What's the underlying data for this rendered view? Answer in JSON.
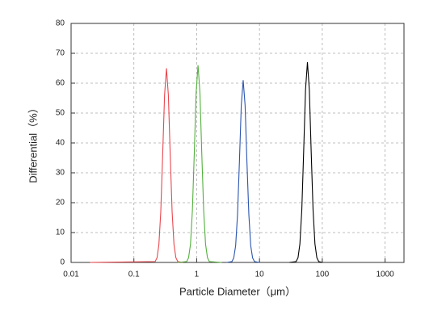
{
  "chart_data": {
    "type": "line",
    "x_label": "Particle Diameter（μm）",
    "y_label": "Differential（%）",
    "log_x": true,
    "grid": true,
    "xlim": [
      0.01,
      2000
    ],
    "xticks": [
      0.01,
      0.1,
      1,
      10,
      100,
      1000
    ],
    "ylim": [
      0,
      80
    ],
    "yticks": [
      0,
      10,
      20,
      30,
      40,
      50,
      60,
      70,
      80
    ],
    "series": [
      {
        "color": "#e8474e",
        "x": [
          0.02,
          0.218,
          0.234,
          0.25,
          0.268,
          0.287,
          0.308,
          0.33,
          0.354,
          0.379,
          0.406,
          0.435,
          0.466,
          0.5,
          0.6
        ],
        "values": [
          0,
          0.3,
          1.6,
          6,
          17,
          35.9,
          56,
          65,
          56,
          35.9,
          17,
          6,
          1.6,
          0.3,
          0
        ]
      },
      {
        "color": "#52b03c",
        "x": [
          0.5,
          0.694,
          0.743,
          0.797,
          0.854,
          0.915,
          0.98,
          1.05,
          1.126,
          1.205,
          1.292,
          1.384,
          1.484,
          1.59,
          2.5
        ],
        "values": [
          0,
          0.3,
          1.6,
          6.1,
          17.3,
          36.4,
          56.9,
          66,
          56.9,
          36.4,
          17.3,
          6.1,
          1.6,
          0.3,
          0
        ]
      },
      {
        "color": "#2b55b0",
        "x": [
          3,
          3.64,
          3.89,
          4.17,
          4.47,
          4.79,
          5.13,
          5.5,
          5.9,
          6.31,
          6.77,
          7.25,
          7.77,
          8.33,
          10
        ],
        "values": [
          0,
          0.3,
          1.5,
          5.6,
          16,
          33.7,
          52.6,
          61,
          52.6,
          33.7,
          16,
          5.6,
          1.5,
          0.3,
          0
        ]
      },
      {
        "color": "#000000",
        "x": [
          30,
          38.3,
          41.1,
          44,
          47.2,
          50.5,
          54.1,
          58,
          62.2,
          66.6,
          71.3,
          76.4,
          81.9,
          87.8,
          100
        ],
        "values": [
          0,
          0.3,
          1.6,
          6.2,
          17.6,
          37,
          57.8,
          67,
          57.8,
          37,
          17.6,
          6.2,
          1.6,
          0.3,
          0
        ]
      }
    ]
  }
}
